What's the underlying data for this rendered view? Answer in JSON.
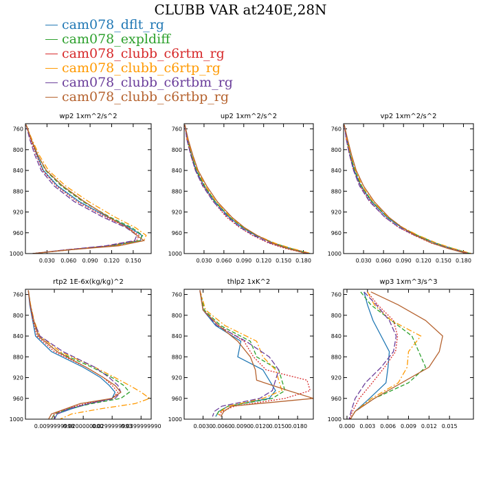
{
  "page_title": "CLUBB VAR at240E,28N",
  "legend": [
    {
      "name": "cam078_dflt_rg",
      "color": "#1f77b4"
    },
    {
      "name": "cam078_expldiff",
      "color": "#2ca02c"
    },
    {
      "name": "cam078_clubb_c6rtm_rg",
      "color": "#d62728"
    },
    {
      "name": "cam078_clubb_c6rtp_rg",
      "color": "#ff9900"
    },
    {
      "name": "cam078_clubb_c6rtbm_rg",
      "color": "#6a3d9a"
    },
    {
      "name": "cam078_clubb_c6rtbp_rg",
      "color": "#b5622e"
    }
  ],
  "chart_data": [
    {
      "type": "line",
      "title": "wp2 1xm^2/s^2",
      "xlim": [
        0,
        0.175
      ],
      "ylim": [
        1000,
        750
      ],
      "xticks": [
        0.03,
        0.06,
        0.09,
        0.12,
        0.15
      ],
      "xtick_labels": [
        "0.030",
        "0.060",
        "0.090",
        "0.120",
        "0.150"
      ],
      "yticks": [
        760,
        800,
        840,
        880,
        920,
        960,
        1000
      ],
      "y": [
        752,
        780,
        810,
        840,
        870,
        900,
        930,
        950,
        965,
        975,
        985,
        993,
        1000
      ],
      "series": [
        {
          "values": [
            0.001,
            0.008,
            0.016,
            0.025,
            0.045,
            0.075,
            0.115,
            0.145,
            0.162,
            0.16,
            0.12,
            0.06,
            0.01
          ],
          "color": "#1f77b4",
          "dash": ""
        },
        {
          "values": [
            0.001,
            0.008,
            0.017,
            0.028,
            0.05,
            0.08,
            0.118,
            0.148,
            0.163,
            0.159,
            0.118,
            0.058,
            0.01
          ],
          "color": "#2ca02c",
          "dash": "6,3"
        },
        {
          "values": [
            0.001,
            0.007,
            0.015,
            0.024,
            0.043,
            0.072,
            0.112,
            0.143,
            0.158,
            0.155,
            0.115,
            0.055,
            0.01
          ],
          "color": "#d62728",
          "dash": "2,2"
        },
        {
          "values": [
            0.001,
            0.009,
            0.019,
            0.032,
            0.056,
            0.088,
            0.125,
            0.153,
            0.168,
            0.165,
            0.125,
            0.06,
            0.01
          ],
          "color": "#ff9900",
          "dash": "8,3,2,3"
        },
        {
          "values": [
            0.001,
            0.006,
            0.013,
            0.022,
            0.04,
            0.068,
            0.108,
            0.14,
            0.155,
            0.152,
            0.112,
            0.055,
            0.01
          ],
          "color": "#6a3d9a",
          "dash": "8,3"
        },
        {
          "values": [
            0.001,
            0.008,
            0.017,
            0.029,
            0.052,
            0.082,
            0.116,
            0.142,
            0.155,
            0.165,
            0.13,
            0.06,
            0.01
          ],
          "color": "#b5622e",
          "dash": ""
        }
      ]
    },
    {
      "type": "line",
      "title": "up2 1xm^2/s^2",
      "xlim": [
        0,
        0.195
      ],
      "ylim": [
        1000,
        750
      ],
      "xticks": [
        0.03,
        0.06,
        0.09,
        0.12,
        0.15,
        0.18
      ],
      "xtick_labels": [
        "0.030",
        "0.060",
        "0.090",
        "0.120",
        "0.150",
        "0.180"
      ],
      "yticks": [
        760,
        800,
        840,
        880,
        920,
        960,
        1000
      ],
      "y": [
        752,
        780,
        810,
        840,
        870,
        900,
        930,
        950,
        965,
        980,
        990,
        1000
      ],
      "series": [
        {
          "values": [
            0.001,
            0.005,
            0.011,
            0.018,
            0.03,
            0.046,
            0.068,
            0.088,
            0.108,
            0.135,
            0.16,
            0.19
          ],
          "color": "#1f77b4",
          "dash": ""
        },
        {
          "values": [
            0.001,
            0.005,
            0.011,
            0.019,
            0.031,
            0.047,
            0.069,
            0.089,
            0.109,
            0.136,
            0.16,
            0.19
          ],
          "color": "#2ca02c",
          "dash": "6,3"
        },
        {
          "values": [
            0.001,
            0.004,
            0.01,
            0.017,
            0.029,
            0.044,
            0.064,
            0.084,
            0.103,
            0.128,
            0.152,
            0.185
          ],
          "color": "#d62728",
          "dash": "2,2"
        },
        {
          "values": [
            0.001,
            0.005,
            0.012,
            0.02,
            0.032,
            0.048,
            0.07,
            0.09,
            0.11,
            0.137,
            0.162,
            0.192
          ],
          "color": "#ff9900",
          "dash": "8,3,2,3"
        },
        {
          "values": [
            0.001,
            0.004,
            0.01,
            0.017,
            0.028,
            0.044,
            0.066,
            0.085,
            0.105,
            0.13,
            0.155,
            0.188
          ],
          "color": "#6a3d9a",
          "dash": "8,3"
        },
        {
          "values": [
            0.001,
            0.006,
            0.013,
            0.021,
            0.034,
            0.05,
            0.072,
            0.091,
            0.11,
            0.133,
            0.155,
            0.185
          ],
          "color": "#b5622e",
          "dash": ""
        }
      ]
    },
    {
      "type": "line",
      "title": "vp2 1xm^2/s^2",
      "xlim": [
        0,
        0.195
      ],
      "ylim": [
        1000,
        750
      ],
      "xticks": [
        0.03,
        0.06,
        0.09,
        0.12,
        0.15,
        0.18
      ],
      "xtick_labels": [
        "0.030",
        "0.060",
        "0.090",
        "0.120",
        "0.150",
        "0.180"
      ],
      "yticks": [
        760,
        800,
        840,
        880,
        920,
        960,
        1000
      ],
      "y": [
        752,
        780,
        810,
        840,
        870,
        900,
        930,
        950,
        965,
        980,
        990,
        1000
      ],
      "series": [
        {
          "values": [
            0.001,
            0.005,
            0.01,
            0.016,
            0.026,
            0.042,
            0.065,
            0.087,
            0.11,
            0.138,
            0.162,
            0.19
          ],
          "color": "#1f77b4",
          "dash": ""
        },
        {
          "values": [
            0.001,
            0.005,
            0.01,
            0.017,
            0.027,
            0.043,
            0.066,
            0.088,
            0.111,
            0.139,
            0.163,
            0.19
          ],
          "color": "#2ca02c",
          "dash": "6,3"
        },
        {
          "values": [
            0.001,
            0.004,
            0.009,
            0.015,
            0.025,
            0.04,
            0.062,
            0.083,
            0.106,
            0.132,
            0.158,
            0.187
          ],
          "color": "#d62728",
          "dash": "2,2"
        },
        {
          "values": [
            0.001,
            0.005,
            0.011,
            0.018,
            0.028,
            0.044,
            0.067,
            0.089,
            0.112,
            0.14,
            0.164,
            0.192
          ],
          "color": "#ff9900",
          "dash": "8,3,2,3"
        },
        {
          "values": [
            0.001,
            0.004,
            0.009,
            0.015,
            0.024,
            0.039,
            0.062,
            0.084,
            0.107,
            0.134,
            0.158,
            0.188
          ],
          "color": "#6a3d9a",
          "dash": "8,3"
        },
        {
          "values": [
            0.001,
            0.006,
            0.012,
            0.019,
            0.03,
            0.046,
            0.068,
            0.088,
            0.108,
            0.133,
            0.156,
            0.185
          ],
          "color": "#b5622e",
          "dash": ""
        }
      ]
    },
    {
      "type": "line",
      "title": "rtp2 1E-6x(kg/kg)^2",
      "xlim": [
        0,
        0.0435
      ],
      "ylim": [
        1000,
        750
      ],
      "xticks": [
        0.0099999998,
        0.02,
        0.03,
        0.04
      ],
      "xtick_labels": [
        "0.0099999998",
        "0.0200000000",
        "0.0299999993",
        "0.0399999990"
      ],
      "yticks": [
        760,
        800,
        840,
        880,
        920,
        960,
        1000
      ],
      "y": [
        752,
        780,
        810,
        840,
        870,
        900,
        920,
        935,
        948,
        960,
        970,
        980,
        990,
        1000
      ],
      "series": [
        {
          "values": [
            0.001,
            0.0015,
            0.0025,
            0.0035,
            0.009,
            0.02,
            0.026,
            0.029,
            0.031,
            0.03,
            0.022,
            0.016,
            0.011,
            0.01
          ],
          "color": "#1f77b4",
          "dash": ""
        },
        {
          "values": [
            0.001,
            0.0017,
            0.0028,
            0.0045,
            0.011,
            0.023,
            0.03,
            0.034,
            0.036,
            0.033,
            0.023,
            0.015,
            0.01,
            0.009
          ],
          "color": "#2ca02c",
          "dash": "6,3"
        },
        {
          "values": [
            0.001,
            0.0016,
            0.0026,
            0.004,
            0.01,
            0.021,
            0.027,
            0.03,
            0.032,
            0.03,
            0.021,
            0.014,
            0.01,
            0.009
          ],
          "color": "#d62728",
          "dash": "2,2"
        },
        {
          "values": [
            0.001,
            0.0018,
            0.003,
            0.005,
            0.012,
            0.024,
            0.031,
            0.036,
            0.04,
            0.043,
            0.038,
            0.026,
            0.016,
            0.012
          ],
          "color": "#ff9900",
          "dash": "8,3,2,3"
        },
        {
          "values": [
            0.001,
            0.0016,
            0.0028,
            0.005,
            0.013,
            0.024,
            0.029,
            0.032,
            0.033,
            0.031,
            0.022,
            0.015,
            0.011,
            0.01
          ],
          "color": "#6a3d9a",
          "dash": "8,3"
        },
        {
          "values": [
            0.001,
            0.0017,
            0.0029,
            0.0045,
            0.011,
            0.021,
            0.027,
            0.031,
            0.033,
            0.03,
            0.019,
            0.014,
            0.009,
            0.008
          ],
          "color": "#b5622e",
          "dash": ""
        }
      ]
    },
    {
      "type": "line",
      "title": "thlp2 1xK^2",
      "xlim": [
        0,
        0.0205
      ],
      "ylim": [
        1000,
        750
      ],
      "xticks": [
        0.003,
        0.006,
        0.009,
        0.012,
        0.015,
        0.018
      ],
      "xtick_labels": [
        "0.0030",
        "0.0060",
        "0.0090",
        "0.0120",
        "0.0150",
        "0.0180"
      ],
      "yticks": [
        760,
        800,
        840,
        880,
        920,
        960,
        1000
      ],
      "y": [
        752,
        790,
        820,
        850,
        880,
        905,
        925,
        945,
        960,
        975,
        985,
        995
      ],
      "series": [
        {
          "values": [
            0.0025,
            0.003,
            0.005,
            0.009,
            0.0085,
            0.0125,
            0.0135,
            0.0145,
            0.0135,
            0.007,
            0.0055,
            0.005
          ],
          "color": "#1f77b4",
          "dash": ""
        },
        {
          "values": [
            0.0025,
            0.0032,
            0.0058,
            0.0105,
            0.0115,
            0.015,
            0.0155,
            0.016,
            0.014,
            0.007,
            0.0055,
            0.005
          ],
          "color": "#2ca02c",
          "dash": "6,3"
        },
        {
          "values": [
            0.0025,
            0.003,
            0.0055,
            0.0095,
            0.011,
            0.013,
            0.0195,
            0.02,
            0.016,
            0.008,
            0.006,
            0.0055
          ],
          "color": "#d62728",
          "dash": "2,2"
        },
        {
          "values": [
            0.0025,
            0.0034,
            0.0065,
            0.0115,
            0.0125,
            0.0145,
            0.015,
            0.0155,
            0.0125,
            0.007,
            0.0058,
            0.0052
          ],
          "color": "#ff9900",
          "dash": "8,3,2,3"
        },
        {
          "values": [
            0.0025,
            0.003,
            0.0052,
            0.0098,
            0.0135,
            0.015,
            0.0145,
            0.014,
            0.012,
            0.006,
            0.0048,
            0.0045
          ],
          "color": "#6a3d9a",
          "dash": "8,3"
        },
        {
          "values": [
            0.0025,
            0.003,
            0.0055,
            0.0085,
            0.0105,
            0.0113,
            0.0115,
            0.0165,
            0.0205,
            0.0075,
            0.0063,
            0.0058
          ],
          "color": "#b5622e",
          "dash": ""
        }
      ]
    },
    {
      "type": "line",
      "title": "wp3 1xm^3/s^3",
      "xlim": [
        -0.0005,
        0.0185
      ],
      "ylim": [
        1000,
        750
      ],
      "xticks": [
        0.0,
        0.003,
        0.006,
        0.009,
        0.012,
        0.015
      ],
      "xtick_labels": [
        "0.000",
        "0.003",
        "0.006",
        "0.009",
        "0.012",
        "0.015"
      ],
      "yticks": [
        760,
        800,
        840,
        880,
        920,
        960,
        1000
      ],
      "y": [
        755,
        780,
        810,
        840,
        870,
        900,
        930,
        960,
        985,
        1000
      ],
      "series": [
        {
          "values": [
            0.0025,
            0.003,
            0.0038,
            0.005,
            0.0062,
            0.006,
            0.0057,
            0.0033,
            0.0012,
            0.0005
          ],
          "color": "#1f77b4",
          "dash": ""
        },
        {
          "values": [
            0.002,
            0.0035,
            0.0065,
            0.0095,
            0.0105,
            0.0115,
            0.009,
            0.004,
            0.0012,
            0.0005
          ],
          "color": "#2ca02c",
          "dash": "6,3"
        },
        {
          "values": [
            0.003,
            0.0045,
            0.0068,
            0.0074,
            0.0071,
            0.0055,
            0.0037,
            0.0018,
            0.0008,
            0.0004
          ],
          "color": "#d62728",
          "dash": "2,2"
        },
        {
          "values": [
            0.003,
            0.004,
            0.0065,
            0.0108,
            0.009,
            0.0088,
            0.0075,
            0.0036,
            0.0012,
            0.0005
          ],
          "color": "#ff9900",
          "dash": "8,3,2,3"
        },
        {
          "values": [
            0.0025,
            0.0043,
            0.0062,
            0.0072,
            0.0068,
            0.005,
            0.0027,
            0.0012,
            0.0006,
            0.0003
          ],
          "color": "#6a3d9a",
          "dash": "8,3"
        },
        {
          "values": [
            0.0035,
            0.0075,
            0.0115,
            0.014,
            0.0135,
            0.012,
            0.008,
            0.004,
            0.0012,
            0.0005
          ],
          "color": "#b5622e",
          "dash": ""
        }
      ]
    }
  ]
}
